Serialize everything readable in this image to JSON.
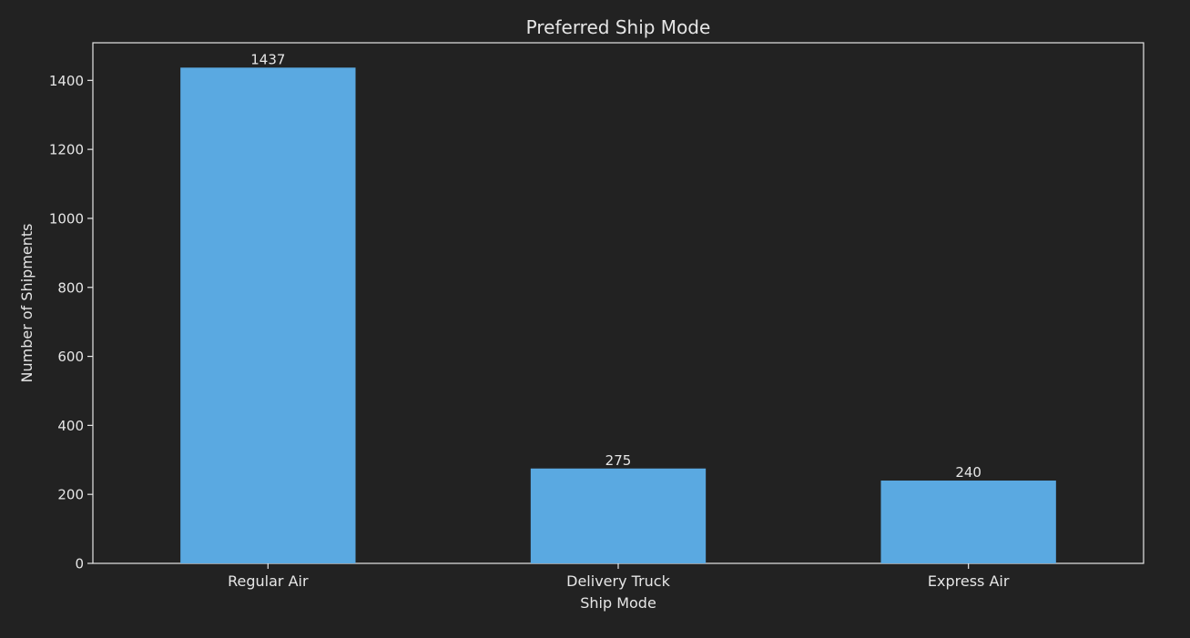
{
  "chart_data": {
    "type": "bar",
    "title": "Preferred Ship Mode",
    "xlabel": "Ship Mode",
    "ylabel": "Number of Shipments",
    "categories": [
      "Regular Air",
      "Delivery Truck",
      "Express Air"
    ],
    "values": [
      1437,
      275,
      240
    ],
    "data_labels": [
      "1437",
      "275",
      "240"
    ],
    "ylim": [
      0,
      1509
    ],
    "yticks": [
      0,
      200,
      400,
      600,
      800,
      1000,
      1200,
      1400
    ],
    "ytick_labels": [
      "0",
      "200",
      "400",
      "600",
      "800",
      "1000",
      "1200",
      "1400"
    ],
    "grid": false,
    "legend": "none",
    "colors": {
      "background": "#222222",
      "bar": "#5aa9e1",
      "axes": "#e6e6e6",
      "text": "#e6e6e6"
    }
  }
}
